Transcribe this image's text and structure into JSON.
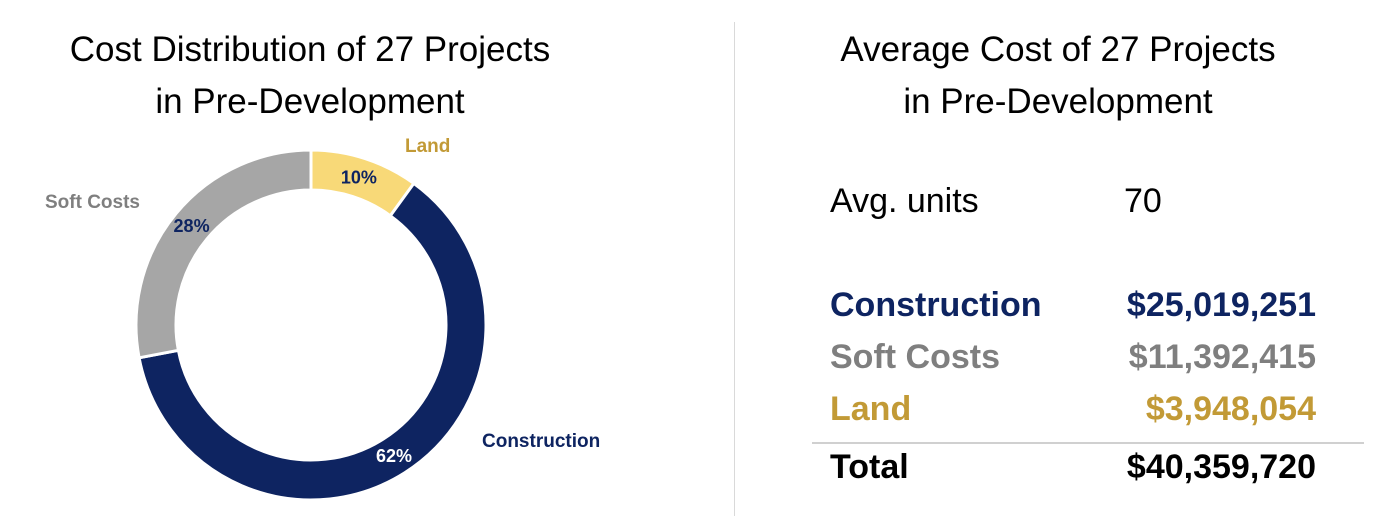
{
  "colors": {
    "construction": "#0e2461",
    "soft_costs": "#a6a6a6",
    "land": "#f8d978",
    "land_text": "#c29a36",
    "soft_text": "#7f7f7f"
  },
  "left": {
    "title_line1": "Cost Distribution of 27 Projects",
    "title_line2": "in Pre-Development"
  },
  "right": {
    "title_line1": "Average Cost of 27 Projects",
    "title_line2": "in Pre-Development",
    "avg_units_label": "Avg. units",
    "avg_units_value": "70",
    "construction_label": "Construction",
    "construction_value": "$25,019,251",
    "soft_costs_label": "Soft Costs",
    "soft_costs_value": "$11,392,415",
    "land_label": "Land",
    "land_value": "$3,948,054",
    "total_label": "Total",
    "total_value": "$40,359,720"
  },
  "chart_data": {
    "type": "pie",
    "title": "Cost Distribution of 27 Projects in Pre-Development",
    "donut": true,
    "categories": [
      "Land",
      "Construction",
      "Soft Costs"
    ],
    "values": [
      10,
      62,
      28
    ],
    "data_labels": [
      "10%",
      "62%",
      "28%"
    ],
    "colors": [
      "#f8d978",
      "#0e2461",
      "#a6a6a6"
    ],
    "label_colors": [
      "#c29a36",
      "#0e2461",
      "#7f7f7f"
    ],
    "pct_label_colors": [
      "#0e2461",
      "#ffffff",
      "#0e2461"
    ],
    "start_angle": "12 o'clock",
    "direction": "clockwise"
  }
}
